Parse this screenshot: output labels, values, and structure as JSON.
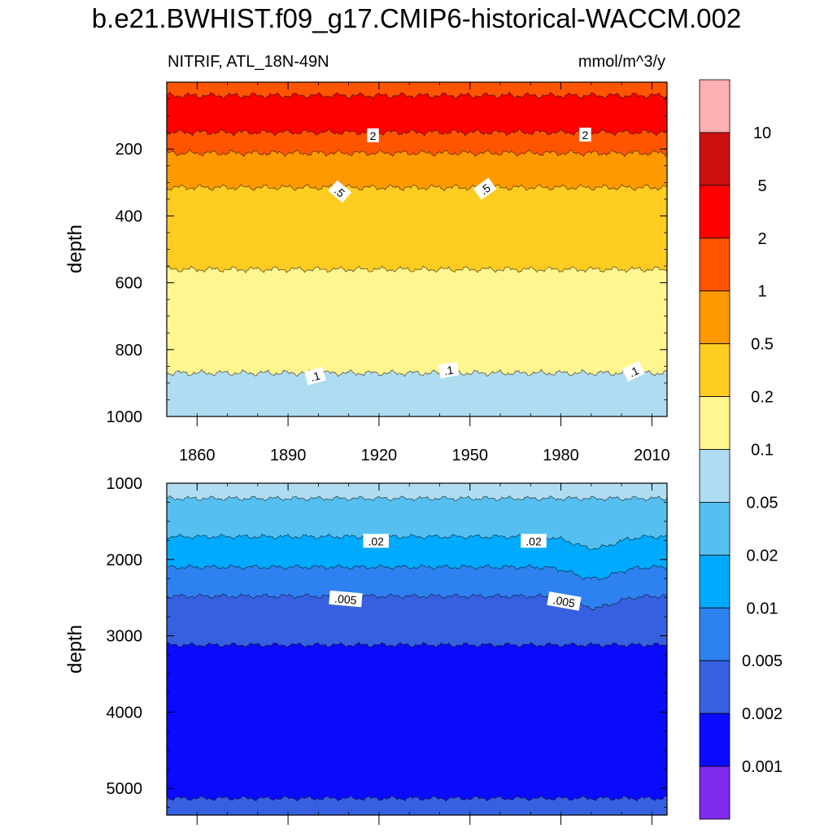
{
  "title": "b.e21.BWHIST.f09_g17.CMIP6-historical-WACCM.002",
  "subtitle_left": "NITRIF, ATL_18N-49N",
  "subtitle_right": "mmol/m^3/y",
  "chart_data": [
    {
      "type": "contour",
      "panel": "upper",
      "ylabel": "depth",
      "xlim": [
        1850,
        2015
      ],
      "ylim": [
        1000,
        0
      ],
      "x_ticks": [
        1860,
        1890,
        1920,
        1950,
        1980,
        2010
      ],
      "y_ticks": [
        200,
        400,
        600,
        800,
        1000
      ],
      "bands": [
        {
          "from": 0,
          "to": 40,
          "color": "#ff5500"
        },
        {
          "from": 40,
          "to": 150,
          "color": "#ff0000"
        },
        {
          "from": 150,
          "to": 212,
          "color": "#ff5500"
        },
        {
          "from": 212,
          "to": 315,
          "color": "#ff9900"
        },
        {
          "from": 315,
          "to": 560,
          "color": "#ffcc22"
        },
        {
          "from": 560,
          "to": 870,
          "color": "#fff68f"
        },
        {
          "from": 870,
          "to": 1000,
          "color": "#b0dcf2"
        }
      ],
      "contour_labels": [
        {
          "text": "2",
          "x": 1918,
          "y": 160,
          "angle": 0
        },
        {
          "text": "2",
          "x": 1988,
          "y": 158,
          "angle": 0
        },
        {
          "text": ".5",
          "x": 1907,
          "y": 328,
          "angle": 40
        },
        {
          "text": ".5",
          "x": 1955,
          "y": 320,
          "angle": -35
        },
        {
          "text": ".1",
          "x": 1899,
          "y": 880,
          "angle": -15
        },
        {
          "text": ".1",
          "x": 1943,
          "y": 862,
          "angle": -10
        },
        {
          "text": ".1",
          "x": 2004,
          "y": 866,
          "angle": -25
        }
      ]
    },
    {
      "type": "contour",
      "panel": "lower",
      "ylabel": "depth",
      "xlim": [
        1850,
        2015
      ],
      "ylim": [
        5350,
        1000
      ],
      "x_ticks": [
        1860,
        1890,
        1920,
        1950,
        1980,
        2010
      ],
      "y_ticks": [
        1000,
        2000,
        3000,
        4000,
        5000
      ],
      "bands": [
        {
          "from": 1000,
          "to": 1200,
          "color": "#b0dcf2"
        },
        {
          "from": 1200,
          "to": 1700,
          "color": "#55c0f0"
        },
        {
          "from": 1700,
          "to": 2100,
          "color": "#00aaff"
        },
        {
          "from": 2100,
          "to": 2480,
          "color": "#2e82f0"
        },
        {
          "from": 2480,
          "to": 3120,
          "color": "#3760e0"
        },
        {
          "from": 3120,
          "to": 5130,
          "color": "#0a0aff"
        },
        {
          "from": 5130,
          "to": 5350,
          "color": "#3760e0"
        }
      ],
      "contour_labels": [
        {
          "text": ".02",
          "x": 1919,
          "y": 1760,
          "angle": 0
        },
        {
          "text": ".02",
          "x": 1971,
          "y": 1760,
          "angle": 0
        },
        {
          "text": ".005",
          "x": 1909,
          "y": 2520,
          "angle": 5
        },
        {
          "text": ".005",
          "x": 1981,
          "y": 2550,
          "angle": 10
        }
      ]
    }
  ],
  "colorbar": {
    "colors": [
      "#ffb0b0",
      "#cc1010",
      "#ff0000",
      "#ff5500",
      "#ff9900",
      "#ffcc22",
      "#fff68f",
      "#b0dcf2",
      "#55c0f0",
      "#00aaff",
      "#2e82f0",
      "#3760e0",
      "#0a0aff",
      "#7f2aee"
    ],
    "labels": [
      "10",
      "5",
      "2",
      "1",
      "0.5",
      "0.2",
      "0.1",
      "0.05",
      "0.02",
      "0.01",
      "0.005",
      "0.002",
      "0.001"
    ]
  }
}
